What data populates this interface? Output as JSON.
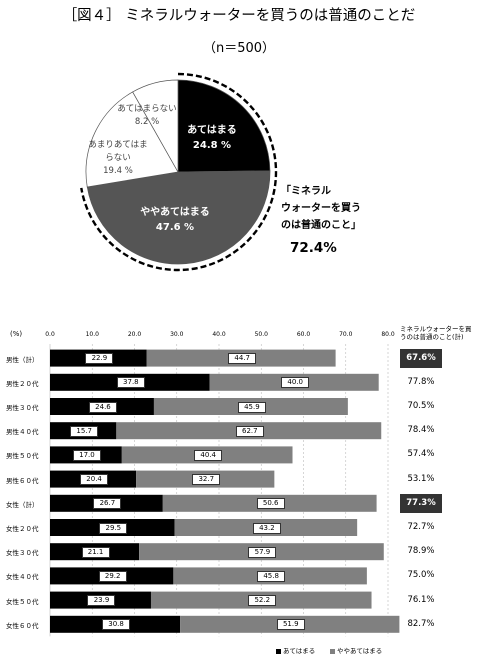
{
  "title": "［図４］ ミネラルウォーターを買うのは普通のことだ",
  "subtitle": "（n＝500）",
  "pie": {
    "slices": [
      {
        "label_lines": [
          "あてはまる",
          "24.8 %"
        ],
        "value": 24.8,
        "color": "#000000"
      },
      {
        "label_lines": [
          "ややあてはまる",
          "47.6 %"
        ],
        "value": 47.6,
        "color": "#555555"
      },
      {
        "label_lines": [
          "あまりあてはま",
          "らない",
          "19.4 %"
        ],
        "value": 19.4,
        "color": "#ffffff"
      },
      {
        "label_lines": [
          "あてはまらない",
          "8.2 %"
        ],
        "value": 8.2,
        "color": "#ffffff"
      }
    ],
    "summary_label_lines": [
      "「ミネラル",
      "ウォーターを買う",
      "のは普通のこと」"
    ],
    "summary_value": "72.4%"
  },
  "chart_data": {
    "type": "bar",
    "orientation": "horizontal",
    "stacked": true,
    "xunit": "(%)",
    "xlim": [
      0,
      80
    ],
    "xticks": [
      "0.0",
      "10.0",
      "20.0",
      "30.0",
      "40.0",
      "50.0",
      "60.0",
      "70.0",
      "80.0"
    ],
    "categories": [
      "男性（計）",
      "男性２０代",
      "男性３０代",
      "男性４０代",
      "男性５０代",
      "男性６０代",
      "女性（計）",
      "女性２０代",
      "女性３０代",
      "女性４０代",
      "女性５０代",
      "女性６０代"
    ],
    "series": [
      {
        "name": "あてはまる",
        "color": "#000000",
        "values": [
          22.9,
          37.8,
          24.6,
          15.7,
          17.0,
          20.4,
          26.7,
          29.5,
          21.1,
          29.2,
          23.9,
          30.8
        ]
      },
      {
        "name": "ややあてはまる",
        "color": "#808080",
        "values": [
          44.7,
          40.0,
          45.9,
          62.7,
          40.4,
          32.7,
          50.6,
          43.2,
          57.9,
          45.8,
          52.2,
          51.9
        ]
      }
    ],
    "right_column_header": "ミネラルウォーターを買うのは普通のこと(計)",
    "right_column": [
      "67.6%",
      "77.8%",
      "70.5%",
      "78.4%",
      "57.4%",
      "53.1%",
      "77.3%",
      "72.7%",
      "78.9%",
      "75.0%",
      "76.1%",
      "82.7%"
    ],
    "right_column_highlight": [
      true,
      false,
      false,
      false,
      false,
      false,
      true,
      false,
      false,
      false,
      false,
      false
    ]
  }
}
